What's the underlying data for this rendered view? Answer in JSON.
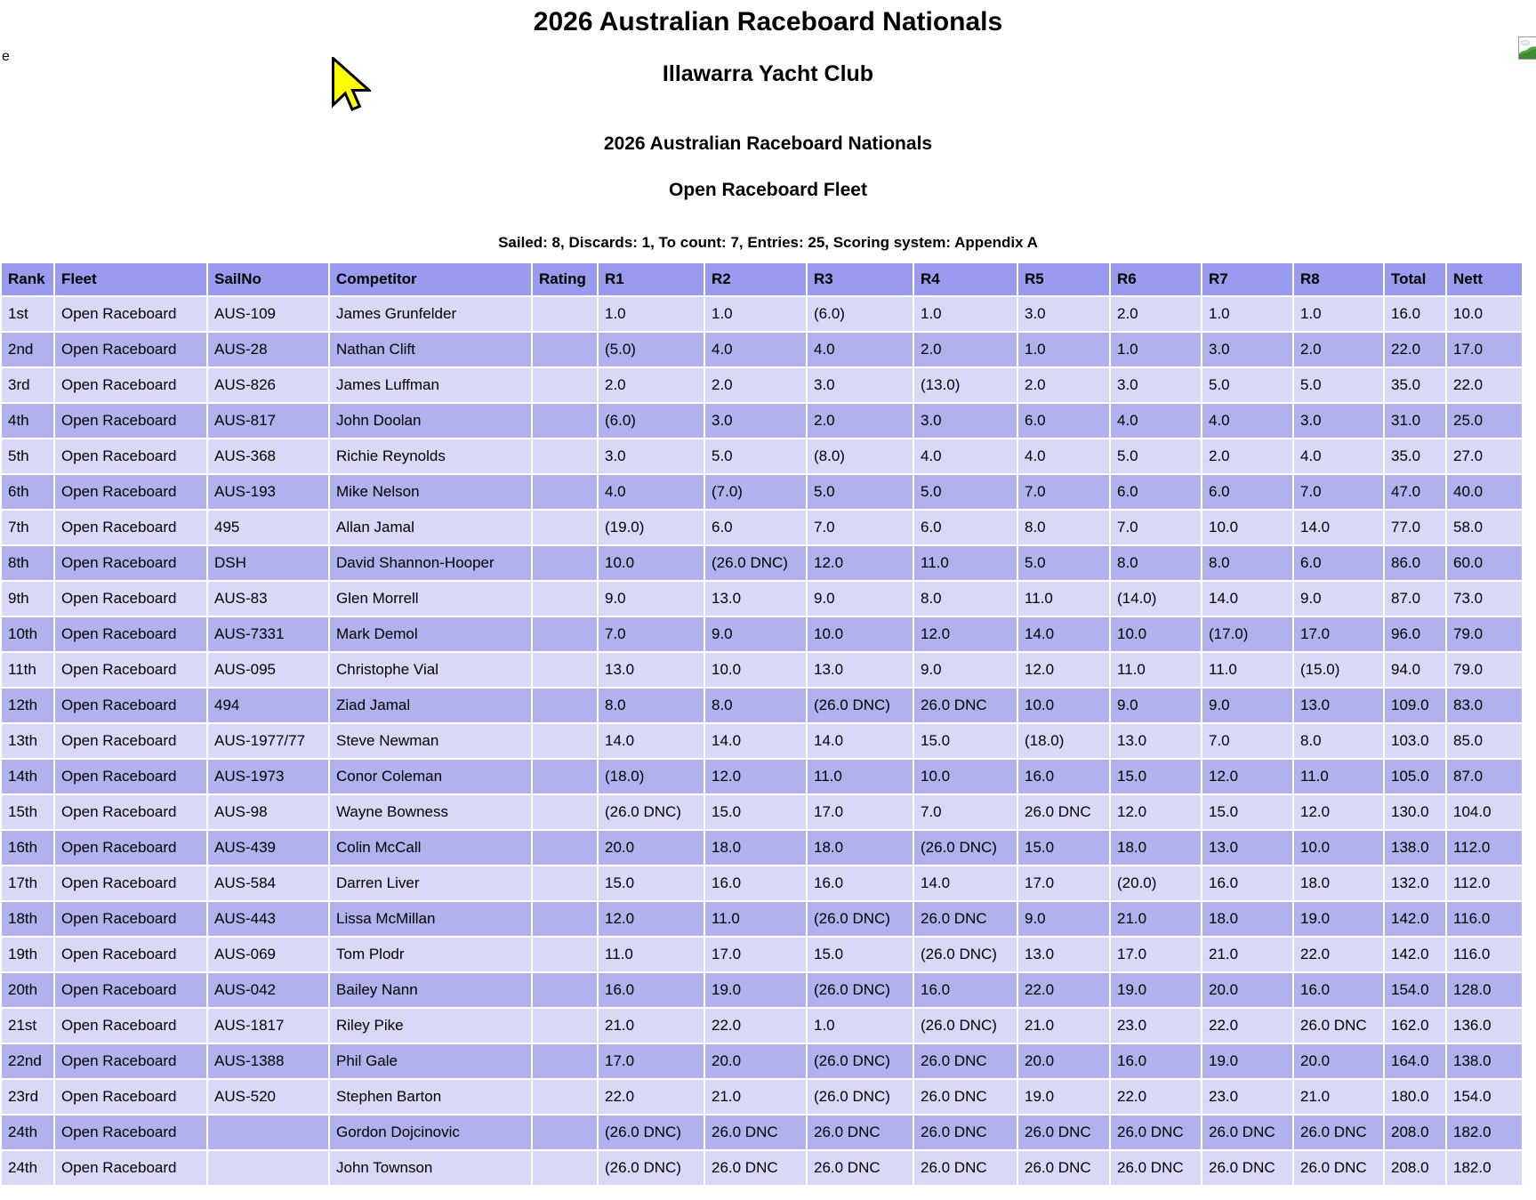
{
  "page": {
    "stray_text": "e",
    "title1": "2026 Australian Raceboard Nationals",
    "title2": "Illawarra Yacht Club",
    "series_title": "2026 Australian Raceboard Nationals",
    "fleet_title": "Open Raceboard Fleet",
    "summary": "Sailed: 8, Discards: 1, To count: 7, Entries: 25, Scoring system: Appendix A"
  },
  "colors": {
    "header_bg": "#9a9aee",
    "row_dark": "#b1b1ee",
    "row_light": "#d9d9f7",
    "grid_gap": "#ffffff",
    "cursor_fill": "#ffff00",
    "text": "#000000"
  },
  "icons": {
    "broken_image": "broken-image-icon",
    "cursor": "cursor-arrow-icon"
  },
  "results_table": {
    "columns": [
      "Rank",
      "Fleet",
      "SailNo",
      "Competitor",
      "Rating",
      "R1",
      "R2",
      "R3",
      "R4",
      "R5",
      "R6",
      "R7",
      "R8",
      "Total",
      "Nett"
    ],
    "rows": [
      [
        "1st",
        "Open Raceboard",
        "AUS-109",
        "James Grunfelder",
        "",
        "1.0",
        "1.0",
        "(6.0)",
        "1.0",
        "3.0",
        "2.0",
        "1.0",
        "1.0",
        "16.0",
        "10.0"
      ],
      [
        "2nd",
        "Open Raceboard",
        "AUS-28",
        "Nathan Clift",
        "",
        "(5.0)",
        "4.0",
        "4.0",
        "2.0",
        "1.0",
        "1.0",
        "3.0",
        "2.0",
        "22.0",
        "17.0"
      ],
      [
        "3rd",
        "Open Raceboard",
        "AUS-826",
        "James Luffman",
        "",
        "2.0",
        "2.0",
        "3.0",
        "(13.0)",
        "2.0",
        "3.0",
        "5.0",
        "5.0",
        "35.0",
        "22.0"
      ],
      [
        "4th",
        "Open Raceboard",
        "AUS-817",
        "John Doolan",
        "",
        "(6.0)",
        "3.0",
        "2.0",
        "3.0",
        "6.0",
        "4.0",
        "4.0",
        "3.0",
        "31.0",
        "25.0"
      ],
      [
        "5th",
        "Open Raceboard",
        "AUS-368",
        "Richie Reynolds",
        "",
        "3.0",
        "5.0",
        "(8.0)",
        "4.0",
        "4.0",
        "5.0",
        "2.0",
        "4.0",
        "35.0",
        "27.0"
      ],
      [
        "6th",
        "Open Raceboard",
        "AUS-193",
        "Mike Nelson",
        "",
        "4.0",
        "(7.0)",
        "5.0",
        "5.0",
        "7.0",
        "6.0",
        "6.0",
        "7.0",
        "47.0",
        "40.0"
      ],
      [
        "7th",
        "Open Raceboard",
        "495",
        "Allan Jamal",
        "",
        "(19.0)",
        "6.0",
        "7.0",
        "6.0",
        "8.0",
        "7.0",
        "10.0",
        "14.0",
        "77.0",
        "58.0"
      ],
      [
        "8th",
        "Open Raceboard",
        "DSH",
        "David Shannon-Hooper",
        "",
        "10.0",
        "(26.0 DNC)",
        "12.0",
        "11.0",
        "5.0",
        "8.0",
        "8.0",
        "6.0",
        "86.0",
        "60.0"
      ],
      [
        "9th",
        "Open Raceboard",
        "AUS-83",
        "Glen Morrell",
        "",
        "9.0",
        "13.0",
        "9.0",
        "8.0",
        "11.0",
        "(14.0)",
        "14.0",
        "9.0",
        "87.0",
        "73.0"
      ],
      [
        "10th",
        "Open Raceboard",
        "AUS-7331",
        "Mark Demol",
        "",
        "7.0",
        "9.0",
        "10.0",
        "12.0",
        "14.0",
        "10.0",
        "(17.0)",
        "17.0",
        "96.0",
        "79.0"
      ],
      [
        "11th",
        "Open Raceboard",
        "AUS-095",
        "Christophe Vial",
        "",
        "13.0",
        "10.0",
        "13.0",
        "9.0",
        "12.0",
        "11.0",
        "11.0",
        "(15.0)",
        "94.0",
        "79.0"
      ],
      [
        "12th",
        "Open Raceboard",
        "494",
        "Ziad Jamal",
        "",
        "8.0",
        "8.0",
        "(26.0 DNC)",
        "26.0 DNC",
        "10.0",
        "9.0",
        "9.0",
        "13.0",
        "109.0",
        "83.0"
      ],
      [
        "13th",
        "Open Raceboard",
        "AUS-1977/77",
        "Steve Newman",
        "",
        "14.0",
        "14.0",
        "14.0",
        "15.0",
        "(18.0)",
        "13.0",
        "7.0",
        "8.0",
        "103.0",
        "85.0"
      ],
      [
        "14th",
        "Open Raceboard",
        "AUS-1973",
        "Conor Coleman",
        "",
        "(18.0)",
        "12.0",
        "11.0",
        "10.0",
        "16.0",
        "15.0",
        "12.0",
        "11.0",
        "105.0",
        "87.0"
      ],
      [
        "15th",
        "Open Raceboard",
        "AUS-98",
        "Wayne Bowness",
        "",
        "(26.0 DNC)",
        "15.0",
        "17.0",
        "7.0",
        "26.0 DNC",
        "12.0",
        "15.0",
        "12.0",
        "130.0",
        "104.0"
      ],
      [
        "16th",
        "Open Raceboard",
        "AUS-439",
        "Colin McCall",
        "",
        "20.0",
        "18.0",
        "18.0",
        "(26.0 DNC)",
        "15.0",
        "18.0",
        "13.0",
        "10.0",
        "138.0",
        "112.0"
      ],
      [
        "17th",
        "Open Raceboard",
        "AUS-584",
        "Darren Liver",
        "",
        "15.0",
        "16.0",
        "16.0",
        "14.0",
        "17.0",
        "(20.0)",
        "16.0",
        "18.0",
        "132.0",
        "112.0"
      ],
      [
        "18th",
        "Open Raceboard",
        "AUS-443",
        "Lissa McMillan",
        "",
        "12.0",
        "11.0",
        "(26.0 DNC)",
        "26.0 DNC",
        "9.0",
        "21.0",
        "18.0",
        "19.0",
        "142.0",
        "116.0"
      ],
      [
        "19th",
        "Open Raceboard",
        "AUS-069",
        "Tom Plodr",
        "",
        "11.0",
        "17.0",
        "15.0",
        "(26.0 DNC)",
        "13.0",
        "17.0",
        "21.0",
        "22.0",
        "142.0",
        "116.0"
      ],
      [
        "20th",
        "Open Raceboard",
        "AUS-042",
        "Bailey Nann",
        "",
        "16.0",
        "19.0",
        "(26.0 DNC)",
        "16.0",
        "22.0",
        "19.0",
        "20.0",
        "16.0",
        "154.0",
        "128.0"
      ],
      [
        "21st",
        "Open Raceboard",
        "AUS-1817",
        "Riley Pike",
        "",
        "21.0",
        "22.0",
        "1.0",
        "(26.0 DNC)",
        "21.0",
        "23.0",
        "22.0",
        "26.0 DNC",
        "162.0",
        "136.0"
      ],
      [
        "22nd",
        "Open Raceboard",
        "AUS-1388",
        "Phil Gale",
        "",
        "17.0",
        "20.0",
        "(26.0 DNC)",
        "26.0 DNC",
        "20.0",
        "16.0",
        "19.0",
        "20.0",
        "164.0",
        "138.0"
      ],
      [
        "23rd",
        "Open Raceboard",
        "AUS-520",
        "Stephen Barton",
        "",
        "22.0",
        "21.0",
        "(26.0 DNC)",
        "26.0 DNC",
        "19.0",
        "22.0",
        "23.0",
        "21.0",
        "180.0",
        "154.0"
      ],
      [
        "24th",
        "Open Raceboard",
        "",
        "Gordon Dojcinovic",
        "",
        "(26.0 DNC)",
        "26.0 DNC",
        "26.0 DNC",
        "26.0 DNC",
        "26.0 DNC",
        "26.0 DNC",
        "26.0 DNC",
        "26.0 DNC",
        "208.0",
        "182.0"
      ],
      [
        "24th",
        "Open Raceboard",
        "",
        "John Townson",
        "",
        "(26.0 DNC)",
        "26.0 DNC",
        "26.0 DNC",
        "26.0 DNC",
        "26.0 DNC",
        "26.0 DNC",
        "26.0 DNC",
        "26.0 DNC",
        "208.0",
        "182.0"
      ]
    ]
  }
}
